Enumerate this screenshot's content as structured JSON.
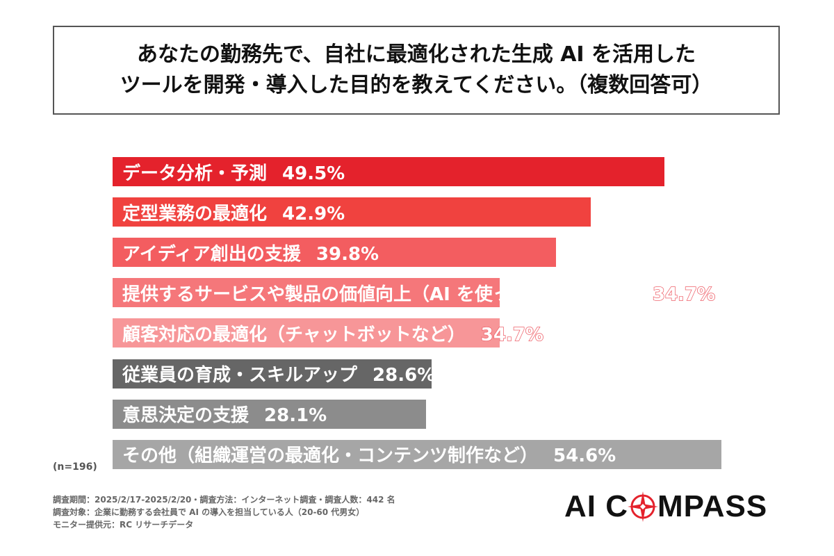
{
  "title": {
    "line1": "あなたの勤務先で、自社に最適化された生成 AI を活用した",
    "line2": "ツールを開発・導入した目的を教えてください。（複数回答可）"
  },
  "chart_data": {
    "type": "bar",
    "orientation": "horizontal",
    "categories": [
      "データ分析・予測",
      "定型業務の最適化",
      "アイディア創出の支援",
      "提供するサービスや製品の価値向上（AI を使った新機能など）",
      "顧客対応の最適化（チャットボットなど）",
      "従業員の育成・スキルアップ",
      "意思決定の支援",
      "その他（組織運営の最適化・コンテンツ制作など）"
    ],
    "values": [
      49.5,
      42.9,
      39.8,
      34.7,
      34.7,
      28.6,
      28.1,
      54.6
    ],
    "value_labels": [
      "49.5%",
      "42.9%",
      "39.8%",
      "34.7%",
      "34.7%",
      "28.6%",
      "28.1%",
      "54.6%"
    ],
    "colors": [
      "#e4222c",
      "#f0423f",
      "#f35d60",
      "#f5777a",
      "#f79698",
      "#666666",
      "#8c8c8c",
      "#a6a6a6"
    ],
    "xlim": [
      0,
      55
    ]
  },
  "n_label": "(n=196)",
  "footnotes": [
    "調査期間：2025/2/17-2025/2/20・調査方法：インターネット調査・調査人数：442 名",
    "調査対象：企業に勤務する会社員で AI の導入を担当している人（20-60 代男女）",
    "モニター提供元：RC リサーチデータ"
  ],
  "logo": {
    "part1": "AI C",
    "part2": "MPASS",
    "icon": "compass-rose-icon",
    "accent_color": "#e4222c"
  }
}
